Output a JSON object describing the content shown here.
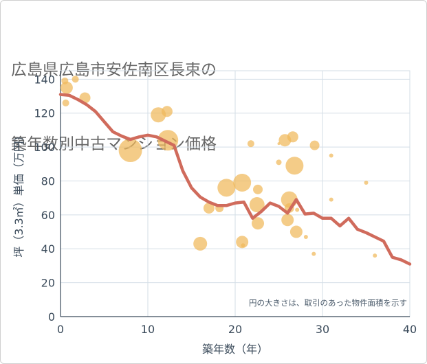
{
  "title_lines": [
    "広島県広島市安佐南区長束の",
    "築年数別中古マンション価格"
  ],
  "colors": {
    "bubble": "#f0b95a",
    "line": "#d06b5c",
    "grid": "#d3dde6",
    "axis": "#3a4a5a"
  },
  "chart_data": {
    "type": "scatter",
    "title": "広島県広島市安佐南区長束の築年数別中古マンション価格",
    "xlabel": "築年数（年）",
    "ylabel": "坪（3.3㎡）単価（万円）",
    "xlim": [
      0,
      40
    ],
    "ylim": [
      0,
      145
    ],
    "xticks": [
      0,
      10,
      20,
      30,
      40
    ],
    "yticks": [
      0,
      20,
      40,
      60,
      80,
      100,
      120,
      140
    ],
    "grid": true,
    "note": "円の大きさは、取引のあった物件面積を示す",
    "bubbles": [
      {
        "x": 0.5,
        "y": 139,
        "size": 5
      },
      {
        "x": 0.7,
        "y": 135,
        "size": 9
      },
      {
        "x": 0.6,
        "y": 126,
        "size": 5
      },
      {
        "x": 1.7,
        "y": 140,
        "size": 5
      },
      {
        "x": 2.8,
        "y": 129,
        "size": 8
      },
      {
        "x": 8,
        "y": 98,
        "size": 17
      },
      {
        "x": 11.2,
        "y": 119,
        "size": 11
      },
      {
        "x": 12.2,
        "y": 121,
        "size": 8
      },
      {
        "x": 12.3,
        "y": 104,
        "size": 15
      },
      {
        "x": 16,
        "y": 43,
        "size": 10
      },
      {
        "x": 17,
        "y": 64,
        "size": 8
      },
      {
        "x": 18.2,
        "y": 64,
        "size": 6
      },
      {
        "x": 19,
        "y": 76,
        "size": 13
      },
      {
        "x": 20.8,
        "y": 79,
        "size": 13
      },
      {
        "x": 20.8,
        "y": 44,
        "size": 9
      },
      {
        "x": 20.9,
        "y": 42,
        "size": 3
      },
      {
        "x": 21.8,
        "y": 102,
        "size": 5
      },
      {
        "x": 22.5,
        "y": 66,
        "size": 11
      },
      {
        "x": 22.6,
        "y": 75,
        "size": 7
      },
      {
        "x": 22.6,
        "y": 55,
        "size": 9
      },
      {
        "x": 25,
        "y": 91,
        "size": 4
      },
      {
        "x": 25,
        "y": 102,
        "size": 2
      },
      {
        "x": 25.7,
        "y": 104,
        "size": 9
      },
      {
        "x": 26.2,
        "y": 69,
        "size": 12
      },
      {
        "x": 26,
        "y": 57,
        "size": 9
      },
      {
        "x": 26.2,
        "y": 64,
        "size": 7
      },
      {
        "x": 26.6,
        "y": 106,
        "size": 8
      },
      {
        "x": 26.8,
        "y": 89,
        "size": 13
      },
      {
        "x": 27,
        "y": 50,
        "size": 9
      },
      {
        "x": 27.1,
        "y": 63,
        "size": 3
      },
      {
        "x": 28.1,
        "y": 47,
        "size": 3
      },
      {
        "x": 29.1,
        "y": 101,
        "size": 7
      },
      {
        "x": 29,
        "y": 37,
        "size": 3
      },
      {
        "x": 31,
        "y": 95,
        "size": 3
      },
      {
        "x": 31,
        "y": 69,
        "size": 3
      },
      {
        "x": 35,
        "y": 79,
        "size": 3
      },
      {
        "x": 36,
        "y": 36,
        "size": 3
      }
    ],
    "series": [
      {
        "type": "line",
        "x": [
          0,
          1,
          2,
          3,
          4,
          5,
          6,
          7,
          8,
          9,
          10,
          11,
          12,
          13,
          14,
          15,
          16,
          17,
          18,
          19,
          20,
          21,
          22,
          23,
          24,
          25,
          26,
          27,
          28,
          29,
          30,
          31,
          32,
          33,
          34,
          35,
          36,
          37,
          38,
          39,
          40
        ],
        "y": [
          131,
          130.5,
          128,
          125,
          121,
          115,
          109,
          106.5,
          104.5,
          106,
          107,
          106,
          103.5,
          101,
          86,
          76,
          70.5,
          67.5,
          65.5,
          65.5,
          67,
          67.5,
          58,
          62,
          67,
          65,
          61,
          69,
          60.5,
          61,
          58,
          58,
          53.5,
          58,
          51.5,
          49.5,
          47,
          44.5,
          35,
          33.5,
          31
        ]
      }
    ]
  }
}
